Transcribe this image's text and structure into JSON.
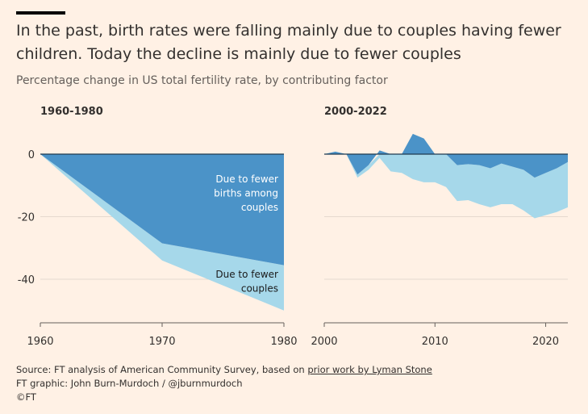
{
  "title": "In the past, birth rates were falling mainly due to couples having fewer children. Today the decline is mainly due to fewer couples",
  "subtitle": "Percentage change in US total fertility rate, by contributing factor",
  "footer": {
    "source_prefix": "Source: FT analysis of American Community Survey, based on ",
    "source_link": "prior work by Lyman Stone",
    "credit": "FT graphic: John Burn-Murdoch / @jburnmurdoch",
    "copyright": "©FT"
  },
  "colors": {
    "fewer_births": "#4b93c8",
    "fewer_couples": "#a6d8ea",
    "background": "#fff1e5",
    "zero_line": "#1f3a4f"
  },
  "chart_data": [
    {
      "type": "area",
      "title": "1960-1980",
      "ylim": [
        -50,
        5
      ],
      "xlim": [
        1960,
        1980
      ],
      "x_ticks": [
        1960,
        1970,
        1980
      ],
      "y_ticks": [
        0,
        -20,
        -40
      ],
      "x": [
        1960,
        1970,
        1980
      ],
      "series": [
        {
          "name": "Due to fewer births among couples",
          "values": [
            0,
            -28.5,
            -35.5
          ]
        },
        {
          "name": "Due to fewer couples",
          "values": [
            0,
            -5.5,
            -14.5
          ]
        }
      ],
      "annotations": [
        "Due to fewer births among couples",
        "Due to fewer couples"
      ]
    },
    {
      "type": "area",
      "title": "2000-2022",
      "ylim": [
        -50,
        5
      ],
      "xlim": [
        2000,
        2022
      ],
      "x_ticks": [
        2000,
        2010,
        2020
      ],
      "y_ticks": [
        0,
        -20,
        -40
      ],
      "x": [
        2000,
        2001,
        2002,
        2003,
        2004,
        2005,
        2006,
        2007,
        2008,
        2009,
        2010,
        2011,
        2012,
        2013,
        2014,
        2015,
        2016,
        2017,
        2018,
        2019,
        2020,
        2021,
        2022
      ],
      "series": [
        {
          "name": "Due to fewer births among couples",
          "values": [
            0,
            0.8,
            0,
            -6.5,
            -3.5,
            1.2,
            0,
            0,
            6.5,
            5.0,
            0,
            0,
            -3.5,
            -3.2,
            -3.5,
            -4.5,
            -3.0,
            -4.0,
            -5.0,
            -7.5,
            -6.0,
            -4.5,
            -2.5
          ]
        },
        {
          "name": "Due to fewer couples",
          "values": [
            0,
            0,
            0,
            -1.0,
            -1.5,
            -1.2,
            -5.5,
            -6.0,
            -8.0,
            -9.0,
            -9.0,
            -10.5,
            -11.5,
            -11.5,
            -12.5,
            -12.5,
            -13.0,
            -12.0,
            -13.0,
            -13.0,
            -13.5,
            -14.0,
            -14.5
          ]
        }
      ]
    }
  ]
}
